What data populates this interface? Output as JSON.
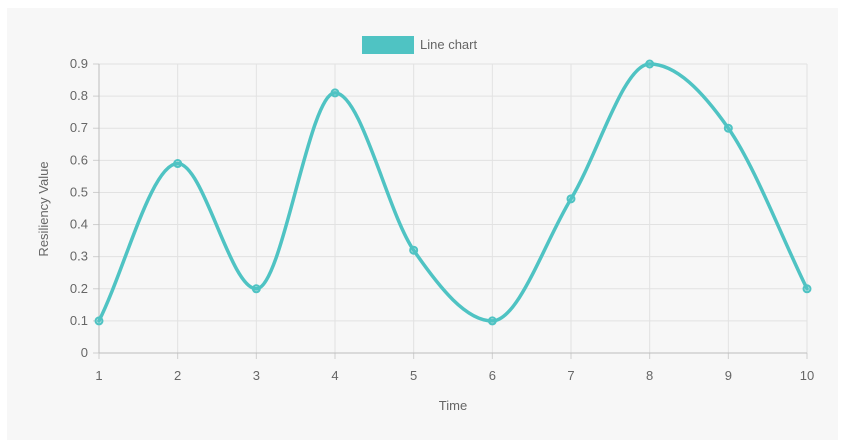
{
  "chart_data": {
    "type": "line",
    "legend": {
      "position": "top-center",
      "label": "Line chart"
    },
    "series": [
      {
        "name": "Line chart",
        "color": "#4fc3c3",
        "x": [
          1,
          2,
          3,
          4,
          5,
          6,
          7,
          8,
          9,
          10
        ],
        "values": [
          0.1,
          0.59,
          0.2,
          0.81,
          0.32,
          0.1,
          0.48,
          0.9,
          0.7,
          0.2
        ]
      }
    ],
    "xlabel": "Time",
    "ylabel": "Resiliency Value",
    "xlim": [
      1,
      10
    ],
    "ylim": [
      0,
      0.9
    ],
    "x_ticks": [
      "1",
      "2",
      "3",
      "4",
      "5",
      "6",
      "7",
      "8",
      "9",
      "10"
    ],
    "y_ticks": [
      "0",
      "0.1",
      "0.2",
      "0.3",
      "0.4",
      "0.5",
      "0.6",
      "0.7",
      "0.8",
      "0.9"
    ],
    "grid": true,
    "smooth": true
  }
}
